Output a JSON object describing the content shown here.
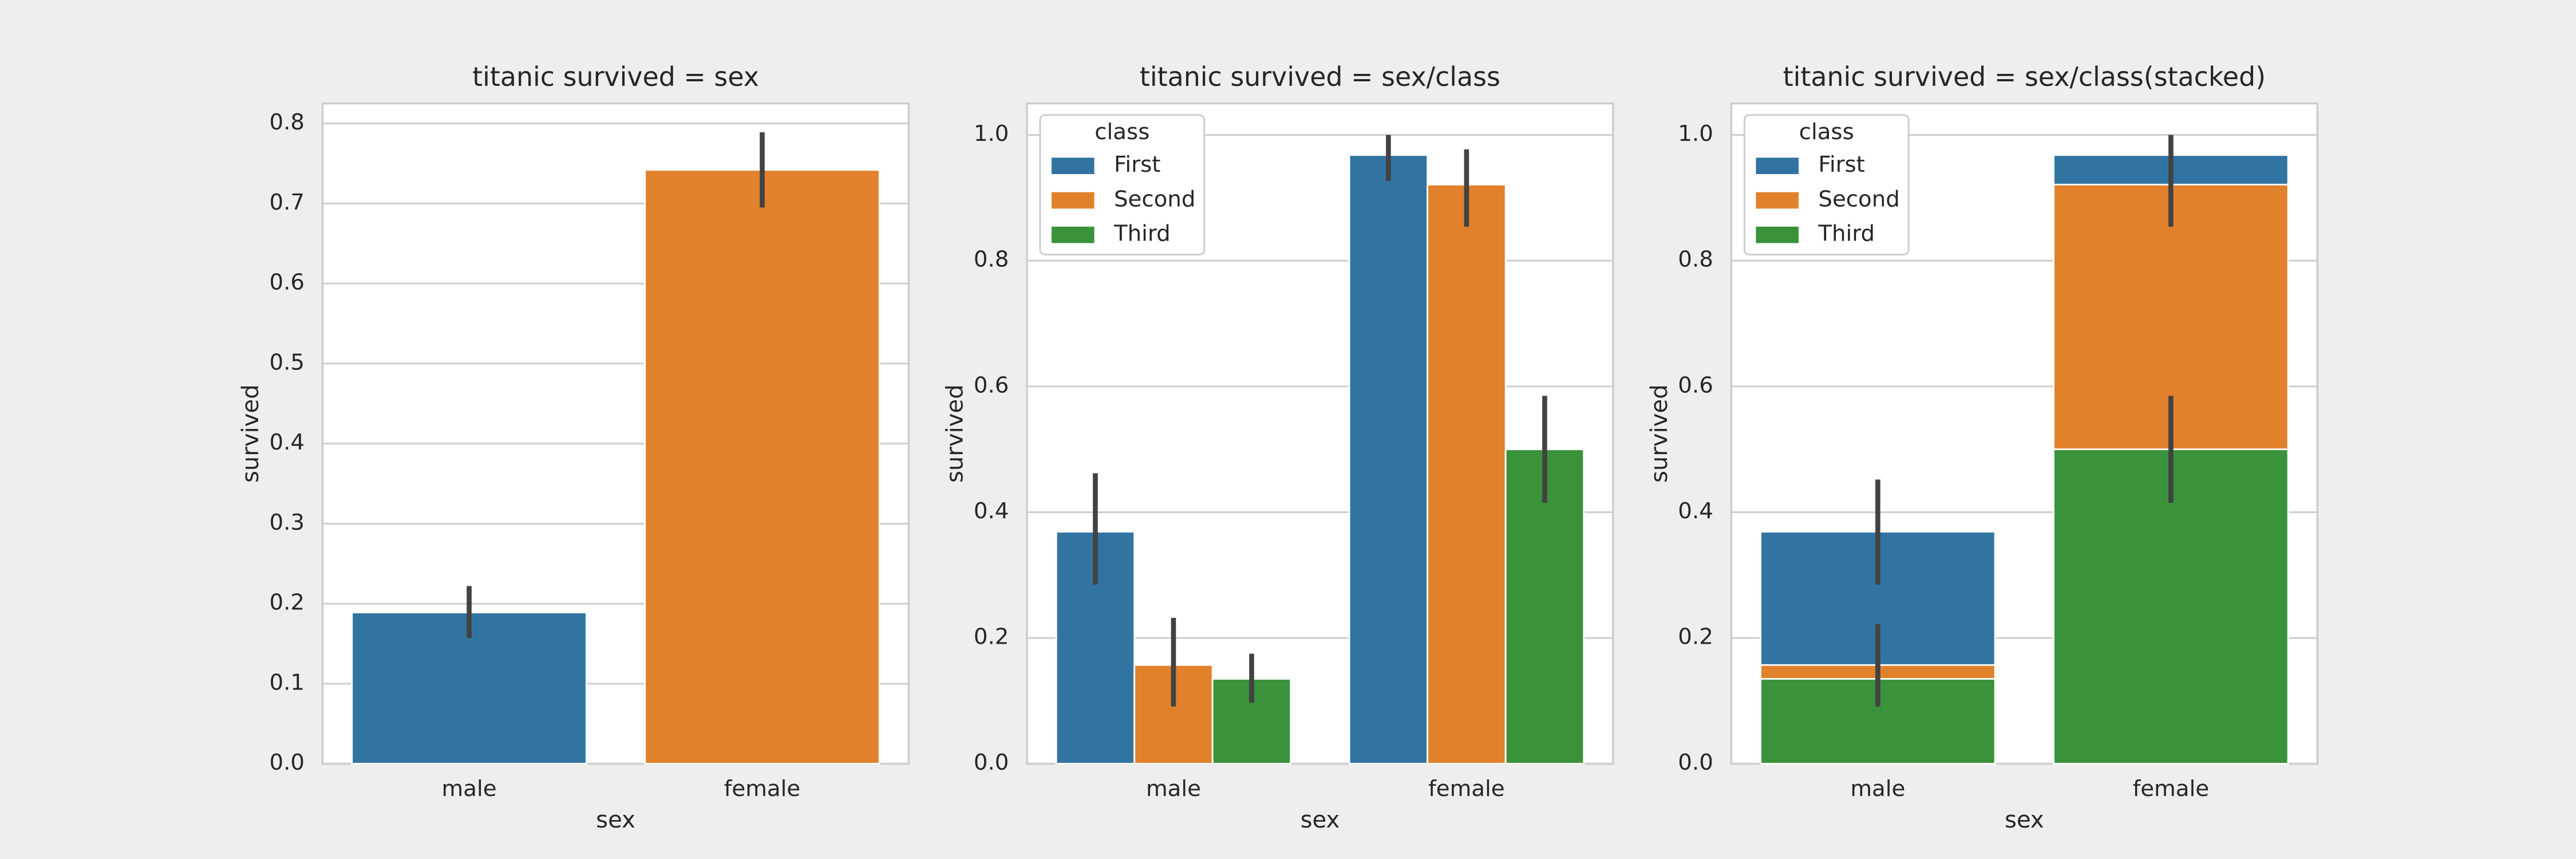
{
  "chart_data": [
    {
      "type": "bar",
      "title": "titanic survived = sex",
      "xlabel": "sex",
      "ylabel": "survived",
      "categories": [
        "male",
        "female"
      ],
      "values": [
        0.189,
        0.742
      ],
      "ci_low": [
        0.157,
        0.695
      ],
      "ci_high": [
        0.222,
        0.789
      ],
      "colors": [
        "#3274a1",
        "#e1812c"
      ],
      "ylim": [
        0,
        0.825
      ],
      "yticks": [
        {
          "value": 0,
          "label": "0.0"
        },
        0.1,
        0.2,
        0.3,
        0.4,
        0.5,
        0.6,
        0.7,
        0.8
      ],
      "grid": true
    },
    {
      "type": "grouped_bar",
      "title": "titanic survived = sex/class",
      "xlabel": "sex",
      "ylabel": "survived",
      "categories": [
        "male",
        "female"
      ],
      "legend_title": "class",
      "legend": "upper left",
      "series": [
        {
          "name": "First",
          "color": "#3274a1",
          "values": [
            0.369,
            0.968
          ],
          "ci_low": [
            0.285,
            0.927
          ],
          "ci_high": [
            0.462,
            1.0
          ]
        },
        {
          "name": "Second",
          "color": "#e1812c",
          "values": [
            0.157,
            0.921
          ],
          "ci_low": [
            0.091,
            0.854
          ],
          "ci_high": [
            0.232,
            0.977
          ]
        },
        {
          "name": "Third",
          "color": "#3a923a",
          "values": [
            0.135,
            0.5
          ],
          "ci_low": [
            0.097,
            0.415
          ],
          "ci_high": [
            0.175,
            0.585
          ]
        }
      ],
      "ylim": [
        0,
        1.05
      ],
      "yticks": [
        {
          "value": 0,
          "label": "0.0"
        },
        0.2,
        0.4,
        0.6,
        0.8,
        {
          "value": 1,
          "label": "1.0"
        }
      ],
      "grid": true
    },
    {
      "type": "overlapping_bar",
      "title": "titanic survived = sex/class(stacked)",
      "xlabel": "sex",
      "ylabel": "survived",
      "categories": [
        "male",
        "female"
      ],
      "legend_title": "class",
      "legend": "upper left",
      "series": [
        {
          "name": "First",
          "color": "#3274a1",
          "values": [
            0.369,
            0.968
          ],
          "ci_low": [
            0.285,
            0.927
          ],
          "ci_high": [
            0.452,
            1.0
          ]
        },
        {
          "name": "Second",
          "color": "#e1812c",
          "values": [
            0.157,
            0.921
          ],
          "ci_low": [
            0.091,
            0.854
          ],
          "ci_high": [
            0.222,
            1.0
          ]
        },
        {
          "name": "Third",
          "color": "#3a923a",
          "values": [
            0.135,
            0.5
          ],
          "ci_low": [
            0.097,
            0.415
          ],
          "ci_high": [
            0.175,
            0.585
          ]
        }
      ],
      "ylim": [
        0,
        1.05
      ],
      "yticks": [
        {
          "value": 0,
          "label": "0.0"
        },
        0.2,
        0.4,
        0.6,
        0.8,
        {
          "value": 1,
          "label": "1.0"
        }
      ],
      "grid": true
    }
  ]
}
